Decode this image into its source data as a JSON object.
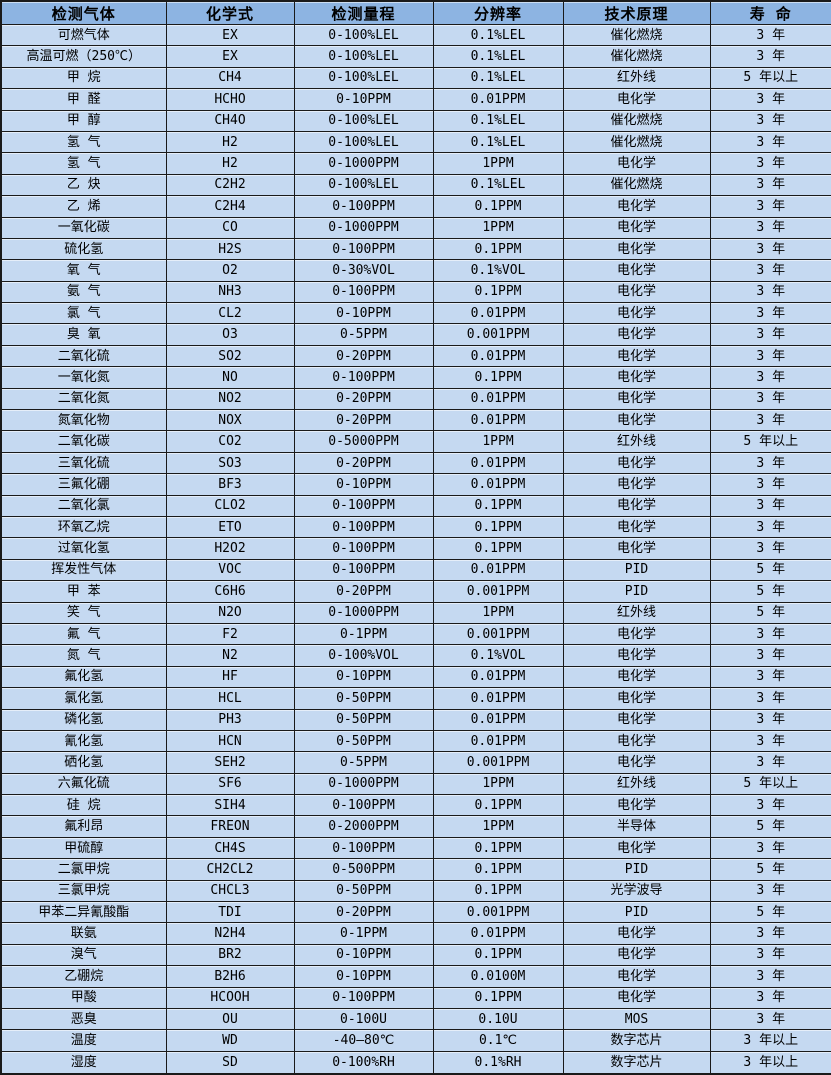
{
  "colors": {
    "header_bg": "#8DB4E2",
    "row_bg": "#C5D9F1",
    "border": "#1A1A1A",
    "text": "#000000"
  },
  "table": {
    "columns": [
      {
        "key": "gas",
        "label": "检测气体"
      },
      {
        "key": "formula",
        "label": "化学式"
      },
      {
        "key": "range",
        "label": "检测量程"
      },
      {
        "key": "resolution",
        "label": "分辨率"
      },
      {
        "key": "principle",
        "label": "技术原理"
      },
      {
        "key": "life",
        "label": "寿 命"
      }
    ],
    "rows": [
      {
        "gas": "可燃气体",
        "formula": "EX",
        "range": "0-100%LEL",
        "resolution": "0.1%LEL",
        "principle": "催化燃烧",
        "life": "3 年"
      },
      {
        "gas": "高温可燃（250℃）",
        "formula": "EX",
        "range": "0-100%LEL",
        "resolution": "0.1%LEL",
        "principle": "催化燃烧",
        "life": "3 年"
      },
      {
        "gas": "甲 烷",
        "formula": "CH4",
        "range": "0-100%LEL",
        "resolution": "0.1%LEL",
        "principle": "红外线",
        "life": "5 年以上"
      },
      {
        "gas": "甲 醛",
        "formula": "HCHO",
        "range": "0-10PPM",
        "resolution": "0.01PPM",
        "principle": "电化学",
        "life": "3 年"
      },
      {
        "gas": "甲 醇",
        "formula": "CH4O",
        "range": "0-100%LEL",
        "resolution": "0.1%LEL",
        "principle": "催化燃烧",
        "life": "3 年"
      },
      {
        "gas": "氢 气",
        "formula": "H2",
        "range": "0-100%LEL",
        "resolution": "0.1%LEL",
        "principle": "催化燃烧",
        "life": "3 年"
      },
      {
        "gas": "氢 气",
        "formula": "H2",
        "range": "0-1000PPM",
        "resolution": "1PPM",
        "principle": "电化学",
        "life": "3 年"
      },
      {
        "gas": "乙 炔",
        "formula": "C2H2",
        "range": "0-100%LEL",
        "resolution": "0.1%LEL",
        "principle": "催化燃烧",
        "life": "3 年"
      },
      {
        "gas": "乙 烯",
        "formula": "C2H4",
        "range": "0-100PPM",
        "resolution": "0.1PPM",
        "principle": "电化学",
        "life": "3 年"
      },
      {
        "gas": "一氧化碳",
        "formula": "CO",
        "range": "0-1000PPM",
        "resolution": "1PPM",
        "principle": "电化学",
        "life": "3 年"
      },
      {
        "gas": "硫化氢",
        "formula": "H2S",
        "range": "0-100PPM",
        "resolution": "0.1PPM",
        "principle": "电化学",
        "life": "3 年"
      },
      {
        "gas": "氧 气",
        "formula": "O2",
        "range": "0-30%VOL",
        "resolution": "0.1%VOL",
        "principle": "电化学",
        "life": "3 年"
      },
      {
        "gas": "氨 气",
        "formula": "NH3",
        "range": "0-100PPM",
        "resolution": "0.1PPM",
        "principle": "电化学",
        "life": "3 年"
      },
      {
        "gas": "氯 气",
        "formula": "CL2",
        "range": "0-10PPM",
        "resolution": "0.01PPM",
        "principle": "电化学",
        "life": "3 年"
      },
      {
        "gas": "臭 氧",
        "formula": "O3",
        "range": "0-5PPM",
        "resolution": "0.001PPM",
        "principle": "电化学",
        "life": "3 年"
      },
      {
        "gas": "二氧化硫",
        "formula": "SO2",
        "range": "0-20PPM",
        "resolution": "0.01PPM",
        "principle": "电化学",
        "life": "3 年"
      },
      {
        "gas": "一氧化氮",
        "formula": "NO",
        "range": "0-100PPM",
        "resolution": "0.1PPM",
        "principle": "电化学",
        "life": "3 年"
      },
      {
        "gas": "二氧化氮",
        "formula": "NO2",
        "range": "0-20PPM",
        "resolution": "0.01PPM",
        "principle": "电化学",
        "life": "3 年"
      },
      {
        "gas": "氮氧化物",
        "formula": "NOX",
        "range": "0-20PPM",
        "resolution": "0.01PPM",
        "principle": "电化学",
        "life": "3 年"
      },
      {
        "gas": "二氧化碳",
        "formula": "CO2",
        "range": "0-5000PPM",
        "resolution": "1PPM",
        "principle": "红外线",
        "life": "5 年以上"
      },
      {
        "gas": "三氧化硫",
        "formula": "SO3",
        "range": "0-20PPM",
        "resolution": "0.01PPM",
        "principle": "电化学",
        "life": "3 年"
      },
      {
        "gas": "三氟化硼",
        "formula": "BF3",
        "range": "0-10PPM",
        "resolution": "0.01PPM",
        "principle": "电化学",
        "life": "3 年"
      },
      {
        "gas": "二氧化氯",
        "formula": "CLO2",
        "range": "0-100PPM",
        "resolution": "0.1PPM",
        "principle": "电化学",
        "life": "3 年"
      },
      {
        "gas": "环氧乙烷",
        "formula": "ETO",
        "range": "0-100PPM",
        "resolution": "0.1PPM",
        "principle": "电化学",
        "life": "3 年"
      },
      {
        "gas": "过氧化氢",
        "formula": "H2O2",
        "range": "0-100PPM",
        "resolution": "0.1PPM",
        "principle": "电化学",
        "life": "3 年"
      },
      {
        "gas": "挥发性气体",
        "formula": "VOC",
        "range": "0-100PPM",
        "resolution": "0.01PPM",
        "principle": "PID",
        "life": "5 年"
      },
      {
        "gas": "甲 苯",
        "formula": "C6H6",
        "range": "0-20PPM",
        "resolution": "0.001PPM",
        "principle": "PID",
        "life": "5 年"
      },
      {
        "gas": "笑 气",
        "formula": "N2O",
        "range": "0-1000PPM",
        "resolution": "1PPM",
        "principle": "红外线",
        "life": "5 年"
      },
      {
        "gas": "氟 气",
        "formula": "F2",
        "range": "0-1PPM",
        "resolution": "0.001PPM",
        "principle": "电化学",
        "life": "3 年"
      },
      {
        "gas": "氮 气",
        "formula": "N2",
        "range": "0-100%VOL",
        "resolution": "0.1%VOL",
        "principle": "电化学",
        "life": "3 年"
      },
      {
        "gas": "氟化氢",
        "formula": "HF",
        "range": "0-10PPM",
        "resolution": "0.01PPM",
        "principle": "电化学",
        "life": "3 年"
      },
      {
        "gas": "氯化氢",
        "formula": "HCL",
        "range": "0-50PPM",
        "resolution": "0.01PPM",
        "principle": "电化学",
        "life": "3 年"
      },
      {
        "gas": "磷化氢",
        "formula": "PH3",
        "range": "0-50PPM",
        "resolution": "0.01PPM",
        "principle": "电化学",
        "life": "3 年"
      },
      {
        "gas": "氰化氢",
        "formula": "HCN",
        "range": "0-50PPM",
        "resolution": "0.01PPM",
        "principle": "电化学",
        "life": "3 年"
      },
      {
        "gas": "硒化氢",
        "formula": "SEH2",
        "range": "0-5PPM",
        "resolution": "0.001PPM",
        "principle": "电化学",
        "life": "3 年"
      },
      {
        "gas": "六氟化硫",
        "formula": "SF6",
        "range": "0-1000PPM",
        "resolution": "1PPM",
        "principle": "红外线",
        "life": "5 年以上"
      },
      {
        "gas": "硅 烷",
        "formula": "SIH4",
        "range": "0-100PPM",
        "resolution": "0.1PPM",
        "principle": "电化学",
        "life": "3 年"
      },
      {
        "gas": "氟利昂",
        "formula": "FREON",
        "range": "0-2000PPM",
        "resolution": "1PPM",
        "principle": "半导体",
        "life": "5 年"
      },
      {
        "gas": "甲硫醇",
        "formula": "CH4S",
        "range": "0-100PPM",
        "resolution": "0.1PPM",
        "principle": "电化学",
        "life": "3 年"
      },
      {
        "gas": "二氯甲烷",
        "formula": "CH2CL2",
        "range": "0-500PPM",
        "resolution": "0.1PPM",
        "principle": "PID",
        "life": "5 年"
      },
      {
        "gas": "三氯甲烷",
        "formula": "CHCL3",
        "range": "0-50PPM",
        "resolution": "0.1PPM",
        "principle": "光学波导",
        "life": "3 年"
      },
      {
        "gas": "甲苯二异氰酸酯",
        "formula": "TDI",
        "range": "0-20PPM",
        "resolution": "0.001PPM",
        "principle": "PID",
        "life": "5 年"
      },
      {
        "gas": "联氨",
        "formula": "N2H4",
        "range": "0-1PPM",
        "resolution": "0.01PPM",
        "principle": "电化学",
        "life": "3 年"
      },
      {
        "gas": "溴气",
        "formula": "BR2",
        "range": "0-10PPM",
        "resolution": "0.1PPM",
        "principle": "电化学",
        "life": "3 年"
      },
      {
        "gas": "乙硼烷",
        "formula": "B2H6",
        "range": "0-10PPM",
        "resolution": "0.0100M",
        "principle": "电化学",
        "life": "3 年"
      },
      {
        "gas": "甲酸",
        "formula": "HCOOH",
        "range": "0-100PPM",
        "resolution": "0.1PPM",
        "principle": "电化学",
        "life": "3 年"
      },
      {
        "gas": "恶臭",
        "formula": "OU",
        "range": "0-100U",
        "resolution": "0.10U",
        "principle": "MOS",
        "life": "3 年"
      },
      {
        "gas": "温度",
        "formula": "WD",
        "range": "-40—80℃",
        "resolution": "0.1℃",
        "principle": "数字芯片",
        "life": "3 年以上"
      },
      {
        "gas": "湿度",
        "formula": "SD",
        "range": "0-100%RH",
        "resolution": "0.1%RH",
        "principle": "数字芯片",
        "life": "3 年以上"
      }
    ]
  }
}
